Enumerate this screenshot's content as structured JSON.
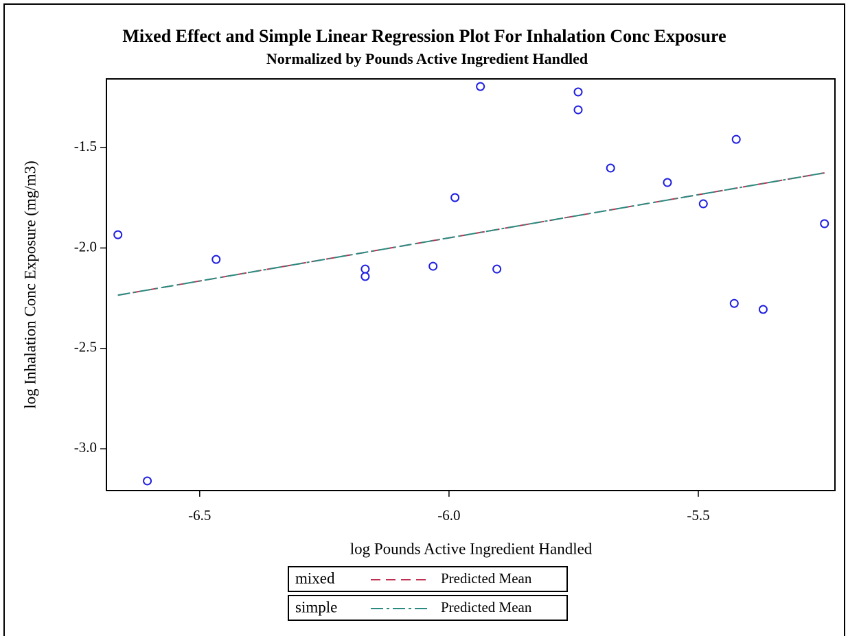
{
  "chart_data": {
    "type": "scatter",
    "title": "Mixed Effect and Simple Linear Regression Plot For Inhalation Conc Exposure",
    "subtitle": "Normalized by Pounds Active Ingredient Handled",
    "x_label": "log Pounds Active Ingredient Handled",
    "y_label": "log Inhalation Conc Exposure (mg/m3)",
    "xlim": [
      -6.687,
      -5.226
    ],
    "ylim": [
      -3.208,
      -1.158
    ],
    "xticks": [
      {
        "value": -6.5,
        "label": "-6.5"
      },
      {
        "value": -6.0,
        "label": "-6.0"
      },
      {
        "value": -5.5,
        "label": "-5.5"
      }
    ],
    "yticks": [
      {
        "value": -3.0,
        "label": "-3.0"
      },
      {
        "value": -2.5,
        "label": "-2.5"
      },
      {
        "value": -2.0,
        "label": "-2.0"
      },
      {
        "value": -1.5,
        "label": "-1.5"
      }
    ],
    "points": {
      "color": "#2020e0",
      "x": [
        -6.664,
        -6.605,
        -6.467,
        -6.168,
        -6.168,
        -6.032,
        -5.988,
        -5.937,
        -5.904,
        -5.741,
        -5.741,
        -5.676,
        -5.562,
        -5.49,
        -5.428,
        -5.424,
        -5.37,
        -5.247
      ],
      "values": [
        -1.934,
        -3.16,
        -2.057,
        -2.105,
        -2.142,
        -2.091,
        -1.749,
        -1.196,
        -2.105,
        -1.223,
        -1.312,
        -1.602,
        -1.674,
        -1.78,
        -2.276,
        -1.459,
        -2.306,
        -1.879
      ]
    },
    "series": [
      {
        "group": "mixed",
        "name": "Predicted Mean",
        "color": "#c03050",
        "dash": "14 8",
        "x": [
          -6.664,
          -5.247
        ],
        "values": [
          -2.235,
          -1.626
        ]
      },
      {
        "group": "simple",
        "name": "Predicted Mean",
        "color": "#2a8a80",
        "dash": "18 5 4 5",
        "x": [
          -6.664,
          -5.247
        ],
        "values": [
          -2.235,
          -1.626
        ]
      }
    ]
  }
}
